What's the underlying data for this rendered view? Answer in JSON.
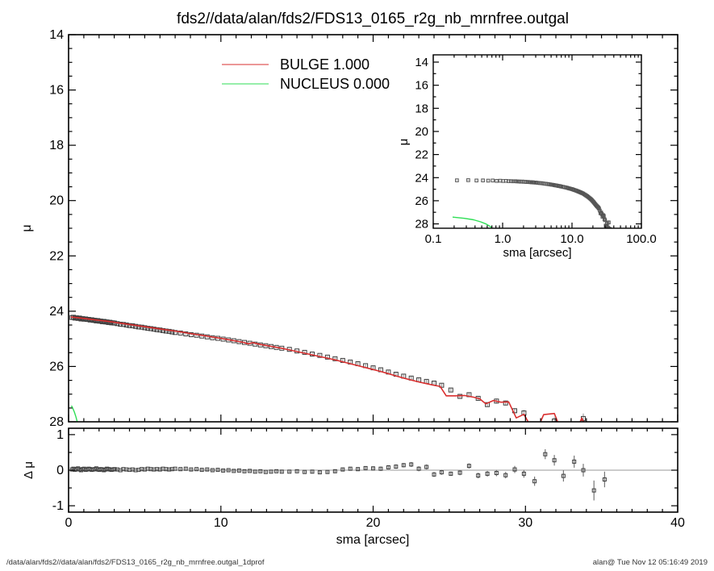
{
  "footer": {
    "left": "/data/alan/fds2//data/alan/fds2/FDS13_0165_r2g_nb_mrnfree.outgal_1dprof",
    "right": "alan@  Tue Nov 12 05:16:49 2019"
  },
  "colors": {
    "bulge": "#d92f2f",
    "nucleus": "#2ede55",
    "points": "#3c3c3c",
    "inset_points": "#555555",
    "error_bars": "#9a9a9a",
    "zero_line": "#9a9a9a",
    "axis": "#000000",
    "background": "#ffffff"
  },
  "chart_data": {
    "type": "scatter",
    "title": "fds2//data/alan/fds2/FDS13_0165_r2g_nb_mrnfree.outgal",
    "legend": [
      {
        "label": "BULGE  1.000",
        "color": "#d92f2f"
      },
      {
        "label": "NUCLEUS  0.000",
        "color": "#2ede55"
      }
    ],
    "panels": {
      "main": {
        "ylabel": "μ",
        "xlim": [
          0,
          40
        ],
        "ytop": 14,
        "ybot": 28,
        "xticks": [
          0,
          10,
          20,
          30,
          40
        ],
        "xminor": 1,
        "yticks": [
          14,
          16,
          18,
          20,
          22,
          24,
          26,
          28
        ],
        "ytick_labels": [
          "14",
          "16",
          "18",
          "20",
          "22",
          "24",
          "26",
          "28"
        ],
        "yminor": 0.5,
        "show_xtick_labels": false,
        "show_ytick_labels": true
      },
      "inset": {
        "xlabel": "sma [arcsec]",
        "ylabel": "μ",
        "xlog": true,
        "xlim": [
          0.1,
          100
        ],
        "ytop": 13.37,
        "ybot": 28.38,
        "xticks": [
          0.1,
          1,
          10,
          100
        ],
        "xtick_labels": [
          "0.1",
          "1.0",
          "10.0",
          "100.0"
        ],
        "yticks": [
          14,
          16,
          18,
          20,
          22,
          24,
          26,
          28
        ],
        "ytick_labels": [
          "14",
          "16",
          "18",
          "20",
          "22",
          "24",
          "26",
          "28"
        ],
        "yminor": 1,
        "show_xtick_labels": true,
        "show_ytick_labels": true
      },
      "residual": {
        "xlabel": "sma [arcsec]",
        "ylabel": "Δ μ",
        "xlim": [
          0,
          40
        ],
        "ytop": 1.18,
        "ybot": -1.18,
        "xticks": [
          0,
          10,
          20,
          30,
          40
        ],
        "xtick_labels": [
          "0",
          "10",
          "20",
          "30",
          "40"
        ],
        "xminor": 1,
        "yticks": [
          -1,
          0,
          1
        ],
        "ytick_labels": [
          "-1",
          "0",
          "1"
        ],
        "yminor": 0.5,
        "show_xtick_labels": true,
        "show_ytick_labels": true,
        "zero_line": 0
      }
    },
    "profile": {
      "sma": [
        0.22,
        0.32,
        0.42,
        0.52,
        0.62,
        0.72,
        0.82,
        0.92,
        1.02,
        1.12,
        1.22,
        1.32,
        1.42,
        1.52,
        1.62,
        1.72,
        1.82,
        1.92,
        2.02,
        2.12,
        2.22,
        2.32,
        2.42,
        2.52,
        2.62,
        2.72,
        2.82,
        2.92,
        3.02,
        3.2,
        3.4,
        3.6,
        3.8,
        4.0,
        4.2,
        4.4,
        4.6,
        4.8,
        5.0,
        5.2,
        5.4,
        5.6,
        5.8,
        6.0,
        6.2,
        6.4,
        6.6,
        6.8,
        7.0,
        7.35,
        7.7,
        8.05,
        8.4,
        8.75,
        9.1,
        9.45,
        9.8,
        10.15,
        10.5,
        10.85,
        11.2,
        11.55,
        11.9,
        12.25,
        12.6,
        12.95,
        13.3,
        13.65,
        14.0,
        14.5,
        15.0,
        15.5,
        16.0,
        16.5,
        17.0,
        17.5,
        18.0,
        18.5,
        19.0,
        19.5,
        20.0,
        20.5,
        21.0,
        21.5,
        22.0,
        22.5,
        23.0,
        23.5,
        24.0,
        24.5,
        25.1,
        25.7,
        26.3,
        26.9,
        27.5,
        28.1,
        28.7,
        29.3,
        29.9,
        30.6,
        31.3,
        31.9,
        32.5,
        33.2,
        33.8,
        34.5,
        35.2
      ],
      "mu": [
        24.23,
        24.22,
        24.25,
        24.24,
        24.26,
        24.25,
        24.28,
        24.27,
        24.29,
        24.28,
        24.3,
        24.3,
        24.32,
        24.31,
        24.33,
        24.33,
        24.35,
        24.34,
        24.36,
        24.36,
        24.38,
        24.37,
        24.39,
        24.39,
        24.41,
        24.4,
        24.42,
        24.42,
        24.43,
        24.45,
        24.47,
        24.48,
        24.5,
        24.52,
        24.53,
        24.55,
        24.57,
        24.58,
        24.6,
        24.62,
        24.63,
        24.65,
        24.67,
        24.68,
        24.7,
        24.72,
        24.73,
        24.75,
        24.77,
        24.79,
        24.82,
        24.85,
        24.87,
        24.9,
        24.93,
        24.96,
        24.98,
        25.01,
        25.04,
        25.07,
        25.1,
        25.13,
        25.16,
        25.19,
        25.22,
        25.25,
        25.28,
        25.31,
        25.34,
        25.38,
        25.44,
        25.49,
        25.55,
        25.6,
        25.66,
        25.72,
        25.78,
        25.84,
        25.9,
        25.97,
        26.05,
        26.12,
        26.2,
        26.28,
        26.35,
        26.42,
        26.48,
        26.54,
        26.6,
        26.68,
        26.85,
        27.08,
        27.02,
        27.15,
        27.38,
        27.25,
        27.32,
        27.6,
        27.68,
        28.15,
        28.18,
        27.97,
        28.3,
        28.35,
        27.88,
        28.9,
        28.45
      ],
      "residual": [
        0.02,
        0.04,
        0.01,
        0.03,
        0.05,
        0.02,
        0.0,
        0.03,
        0.04,
        0.01,
        0.02,
        0.04,
        0.03,
        0.01,
        0.02,
        0.03,
        0.05,
        0.02,
        0.01,
        0.03,
        0.02,
        0.0,
        0.02,
        0.04,
        0.03,
        0.02,
        0.01,
        0.02,
        0.03,
        0.02,
        0.0,
        0.03,
        0.02,
        0.01,
        0.02,
        0.0,
        0.01,
        0.03,
        0.02,
        0.04,
        0.03,
        0.02,
        0.03,
        0.02,
        0.04,
        0.03,
        0.02,
        0.03,
        0.04,
        0.03,
        0.04,
        0.02,
        0.03,
        0.01,
        0.02,
        0.0,
        0.01,
        -0.01,
        0.0,
        -0.02,
        -0.01,
        -0.03,
        -0.02,
        -0.04,
        -0.03,
        -0.05,
        -0.04,
        -0.03,
        -0.04,
        -0.04,
        -0.03,
        -0.05,
        -0.04,
        -0.06,
        -0.05,
        -0.03,
        0.02,
        0.04,
        0.03,
        0.06,
        0.05,
        0.04,
        0.08,
        0.1,
        0.14,
        0.16,
        0.04,
        0.09,
        -0.12,
        -0.06,
        -0.1,
        -0.07,
        0.12,
        -0.15,
        -0.1,
        -0.08,
        -0.14,
        0.02,
        -0.1,
        -0.31,
        0.45,
        0.28,
        -0.16,
        0.24,
        0.0,
        -0.57,
        -0.26
      ],
      "err": [
        0.02,
        0.02,
        0.02,
        0.02,
        0.02,
        0.02,
        0.02,
        0.02,
        0.02,
        0.02,
        0.02,
        0.02,
        0.02,
        0.02,
        0.02,
        0.02,
        0.02,
        0.02,
        0.02,
        0.02,
        0.02,
        0.02,
        0.02,
        0.02,
        0.02,
        0.02,
        0.02,
        0.02,
        0.02,
        0.02,
        0.02,
        0.02,
        0.02,
        0.02,
        0.02,
        0.02,
        0.02,
        0.02,
        0.02,
        0.02,
        0.02,
        0.02,
        0.02,
        0.02,
        0.02,
        0.02,
        0.02,
        0.02,
        0.02,
        0.03,
        0.03,
        0.03,
        0.03,
        0.03,
        0.03,
        0.03,
        0.03,
        0.03,
        0.03,
        0.03,
        0.03,
        0.03,
        0.03,
        0.03,
        0.03,
        0.03,
        0.03,
        0.03,
        0.03,
        0.03,
        0.03,
        0.04,
        0.04,
        0.04,
        0.04,
        0.05,
        0.05,
        0.05,
        0.05,
        0.05,
        0.06,
        0.06,
        0.06,
        0.06,
        0.06,
        0.07,
        0.07,
        0.07,
        0.07,
        0.07,
        0.06,
        0.07,
        0.07,
        0.08,
        0.08,
        0.09,
        0.09,
        0.1,
        0.11,
        0.13,
        0.14,
        0.15,
        0.16,
        0.17,
        0.18,
        0.28,
        0.22
      ]
    },
    "bulge_model": [
      [
        0.15,
        24.21
      ],
      [
        0.5,
        24.23
      ],
      [
        1.0,
        24.26
      ],
      [
        1.5,
        24.3
      ],
      [
        2.0,
        24.33
      ],
      [
        2.5,
        24.36
      ],
      [
        3.0,
        24.4
      ],
      [
        3.5,
        24.44
      ],
      [
        4.0,
        24.48
      ],
      [
        4.5,
        24.52
      ],
      [
        5.0,
        24.56
      ],
      [
        5.5,
        24.6
      ],
      [
        6.0,
        24.64
      ],
      [
        6.5,
        24.68
      ],
      [
        7.0,
        24.72
      ],
      [
        7.5,
        24.76
      ],
      [
        8.0,
        24.81
      ],
      [
        8.5,
        24.85
      ],
      [
        9.0,
        24.89
      ],
      [
        9.5,
        24.94
      ],
      [
        10.0,
        24.98
      ],
      [
        10.5,
        25.03
      ],
      [
        11.0,
        25.08
      ],
      [
        11.5,
        25.13
      ],
      [
        11.8,
        25.18
      ],
      [
        12.1,
        25.14
      ],
      [
        12.5,
        25.19
      ],
      [
        13.0,
        25.24
      ],
      [
        13.5,
        25.29
      ],
      [
        14.0,
        25.34
      ],
      [
        14.5,
        25.4
      ],
      [
        15.0,
        25.46
      ],
      [
        15.5,
        25.52
      ],
      [
        16.0,
        25.58
      ],
      [
        16.5,
        25.64
      ],
      [
        17.0,
        25.7
      ],
      [
        17.5,
        25.76
      ],
      [
        18.0,
        25.83
      ],
      [
        18.5,
        25.9
      ],
      [
        19.0,
        25.97
      ],
      [
        19.5,
        26.04
      ],
      [
        20.0,
        26.11
      ],
      [
        20.5,
        26.18
      ],
      [
        21.0,
        26.26
      ],
      [
        21.5,
        26.34
      ],
      [
        22.0,
        26.42
      ],
      [
        22.5,
        26.49
      ],
      [
        23.0,
        26.56
      ],
      [
        23.5,
        26.62
      ],
      [
        24.0,
        26.68
      ],
      [
        24.4,
        26.72
      ],
      [
        24.8,
        27.06
      ],
      [
        25.4,
        27.06
      ],
      [
        26.0,
        27.05
      ],
      [
        26.6,
        27.11
      ],
      [
        27.0,
        27.17
      ],
      [
        27.4,
        27.35
      ],
      [
        27.9,
        27.23
      ],
      [
        28.4,
        27.29
      ],
      [
        28.9,
        27.28
      ],
      [
        29.4,
        27.86
      ],
      [
        29.9,
        27.73
      ],
      [
        30.3,
        28.12
      ],
      [
        30.9,
        28.12
      ],
      [
        31.2,
        27.74
      ],
      [
        31.9,
        27.7
      ],
      [
        32.2,
        28.12
      ],
      [
        33.5,
        28.12
      ],
      [
        33.7,
        27.87
      ],
      [
        33.9,
        28.12
      ]
    ],
    "nucleus_model": [
      [
        0.19,
        27.42
      ],
      [
        0.28,
        27.52
      ],
      [
        0.38,
        27.65
      ],
      [
        0.48,
        27.82
      ],
      [
        0.58,
        28.02
      ],
      [
        0.7,
        28.32
      ]
    ]
  }
}
